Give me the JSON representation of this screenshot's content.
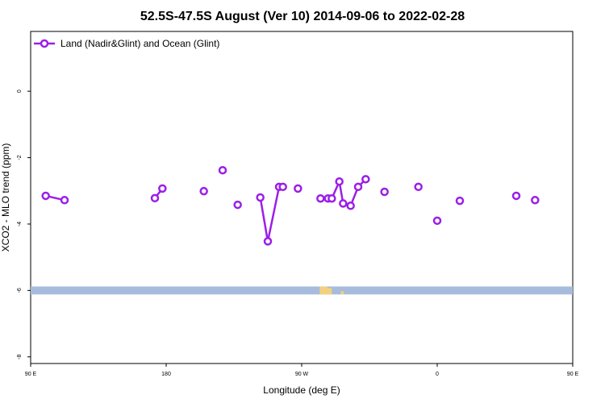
{
  "chart_data": {
    "type": "line",
    "title": "52.5S-47.5S August (Ver 10)   2014-09-06 to 2022-02-28",
    "xlabel": "Longitude (deg E)",
    "ylabel": "XCO2 - MLO trend (ppm)",
    "xlim": [
      90,
      450
    ],
    "ylim": [
      -8.2,
      1.8
    ],
    "x_ticks": [
      {
        "value": 90,
        "label": "90 E"
      },
      {
        "value": 180,
        "label": "180"
      },
      {
        "value": 270,
        "label": "90 W"
      },
      {
        "value": 360,
        "label": "0"
      },
      {
        "value": 450,
        "label": "90 E"
      },
      {
        "value": 540,
        "label": "180"
      }
    ],
    "y_ticks": [
      {
        "value": 0,
        "label": "0"
      },
      {
        "value": -2,
        "label": "-2"
      },
      {
        "value": -4,
        "label": "-4"
      },
      {
        "value": -6,
        "label": "-6"
      },
      {
        "value": -8,
        "label": "-8"
      }
    ],
    "legend": {
      "position": "top-left"
    },
    "series": [
      {
        "name": "Land (Nadir&Glint) and Ocean (Glint)",
        "color": "#9b1fe8",
        "points": [
          [
            100,
            -3.15
          ],
          [
            112.5,
            -3.28
          ],
          [
            172.5,
            -3.22
          ],
          [
            177.5,
            -2.93
          ],
          [
            205,
            -3.01
          ],
          [
            217.5,
            -2.38
          ],
          [
            227.5,
            -3.42
          ],
          [
            242.5,
            -3.2
          ],
          [
            247.5,
            -4.52
          ],
          [
            255,
            -2.88
          ],
          [
            257.5,
            -2.88
          ],
          [
            267.5,
            -2.93
          ],
          [
            282.5,
            -3.23
          ],
          [
            287.5,
            -3.23
          ],
          [
            290,
            -3.23
          ],
          [
            295,
            -2.72
          ],
          [
            297.5,
            -3.38
          ],
          [
            302.5,
            -3.45
          ],
          [
            307.5,
            -2.88
          ],
          [
            312.5,
            -2.65
          ],
          [
            325,
            -3.03
          ],
          [
            347.5,
            -2.88
          ],
          [
            360,
            -3.9
          ],
          [
            375,
            -3.3
          ],
          [
            412.5,
            -3.15
          ],
          [
            425,
            -3.28
          ],
          [
            485,
            -3.22
          ],
          [
            490,
            -2.93
          ]
        ],
        "gaps_before_index": [
          2,
          4,
          5,
          6,
          7,
          11,
          12,
          20,
          21,
          22,
          23,
          24,
          25,
          26
        ]
      }
    ],
    "map_strip": {
      "y_range": [
        -6.12,
        -5.88
      ],
      "ocean_color": "#a7bbdc",
      "land_color": "#f2d17f"
    }
  }
}
